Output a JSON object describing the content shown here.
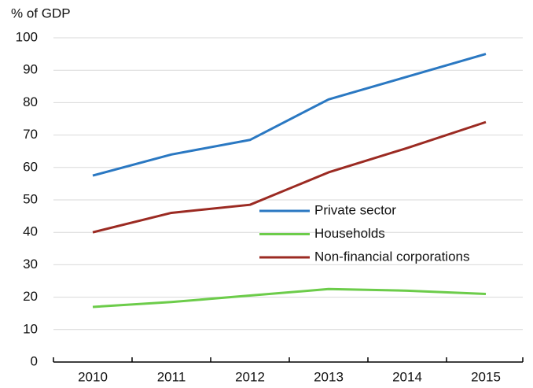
{
  "chart_data": {
    "type": "line",
    "y_label": "% of GDP",
    "categories": [
      "2010",
      "2011",
      "2012",
      "2013",
      "2014",
      "2015"
    ],
    "series": [
      {
        "name": "Private sector",
        "color": "#2a78c2",
        "values": [
          57.5,
          64,
          68.5,
          81,
          88,
          95
        ]
      },
      {
        "name": "Households",
        "color": "#6ccc4a",
        "values": [
          17,
          18.5,
          20.5,
          22.5,
          22,
          21
        ]
      },
      {
        "name": "Non-financial corporations",
        "color": "#9b2a22",
        "values": [
          40,
          46,
          48.5,
          58.5,
          66,
          74
        ]
      }
    ],
    "ylim": [
      0,
      100
    ],
    "yticks": [
      0,
      10,
      20,
      30,
      40,
      50,
      60,
      70,
      80,
      90,
      100
    ],
    "grid": true
  }
}
